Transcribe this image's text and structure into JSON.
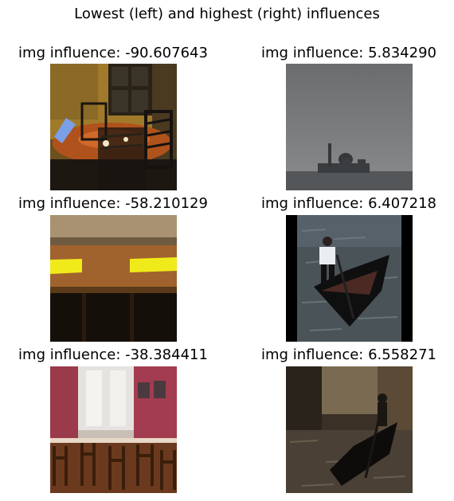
{
  "figure": {
    "title": "Lowest (left) and highest (right) influences"
  },
  "left_column": [
    {
      "label": "img influence: -90.607643",
      "subject": "dining room with chairs and table"
    },
    {
      "label": "img influence: -58.210129",
      "subject": "wooden table with yellow paper notes"
    },
    {
      "label": "img influence: -38.384411",
      "subject": "restaurant interior with chairs"
    }
  ],
  "right_column": [
    {
      "label": "img influence: 5.834290",
      "subject": "grey sky over lagoon skyline"
    },
    {
      "label": "img influence: 6.407218",
      "subject": "gondolier rowing gondola on water"
    },
    {
      "label": "img influence: 6.558271",
      "subject": "gondola in narrow canal"
    }
  ]
}
